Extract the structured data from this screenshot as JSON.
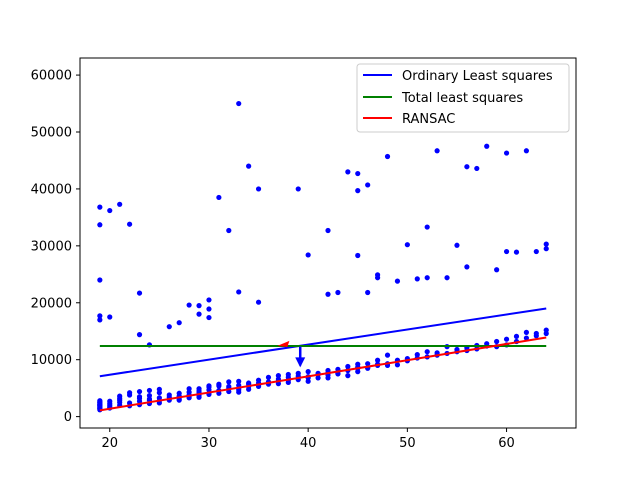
{
  "chart_data": {
    "type": "scatter",
    "title": "",
    "xlabel": "",
    "ylabel": "",
    "xlim": [
      17,
      67
    ],
    "ylim": [
      -2000,
      63000
    ],
    "x_ticks": [
      20,
      30,
      40,
      50,
      60
    ],
    "y_ticks": [
      0,
      10000,
      20000,
      30000,
      40000,
      50000,
      60000
    ],
    "grid": false,
    "legend_position": "top-right",
    "colors": {
      "points": "#0000ff",
      "ols": "#0000ff",
      "tls": "#008000",
      "ransac": "#ff0000"
    },
    "points_x": [
      19,
      19,
      19,
      19,
      19,
      19,
      19,
      19,
      19,
      19,
      19,
      19,
      19,
      20,
      20,
      20,
      20,
      20,
      21,
      21,
      21,
      21,
      21,
      22,
      22,
      22,
      22,
      23,
      23,
      23,
      23,
      23,
      24,
      24,
      24,
      24,
      24,
      25,
      25,
      25,
      25,
      25,
      26,
      26,
      26,
      27,
      27,
      27,
      27,
      27,
      28,
      28,
      28,
      28,
      28,
      29,
      29,
      29,
      29,
      29,
      30,
      30,
      30,
      30,
      30,
      31,
      31,
      31,
      31,
      32,
      32,
      32,
      32,
      33,
      33,
      33,
      33,
      33,
      34,
      34,
      34,
      34,
      35,
      35,
      35,
      35,
      36,
      36,
      36,
      37,
      37,
      37,
      37,
      38,
      38,
      38,
      38,
      39,
      39,
      39,
      40,
      40,
      40,
      40,
      41,
      41,
      41,
      42,
      42,
      42,
      42,
      43,
      43,
      43,
      44,
      44,
      44,
      45,
      45,
      45,
      45,
      46,
      46,
      46,
      47,
      47,
      47,
      48,
      48,
      48,
      49,
      49,
      50,
      50,
      51,
      51,
      52,
      52,
      53,
      53,
      54,
      54,
      55,
      55,
      56,
      56,
      57,
      57,
      58,
      58,
      59,
      59,
      60,
      60,
      61,
      61,
      62,
      62,
      63,
      63,
      64,
      64,
      19,
      19,
      19,
      19,
      19,
      20,
      20,
      21,
      22,
      23,
      23,
      24,
      26,
      27,
      28,
      29,
      29,
      30,
      30,
      30,
      31,
      32,
      33,
      33,
      34,
      35,
      35,
      39,
      40,
      42,
      42,
      43,
      44,
      45,
      45,
      45,
      46,
      46,
      47,
      47,
      48,
      49,
      50,
      51,
      52,
      52,
      53,
      54,
      55,
      56,
      56,
      57,
      58,
      59,
      60,
      60,
      61,
      62,
      63,
      64,
      64
    ],
    "points_y": [
      1500,
      2000,
      2500,
      1200,
      2800,
      1800,
      2200,
      1600,
      2400,
      1400,
      2600,
      1900,
      2100,
      1700,
      2300,
      2700,
      1500,
      2000,
      2500,
      3200,
      2000,
      3600,
      2900,
      4200,
      2400,
      1900,
      3800,
      2700,
      3200,
      2100,
      4400,
      3500,
      2300,
      3100,
      3700,
      4600,
      2900,
      3300,
      2400,
      4200,
      4800,
      2800,
      3400,
      2900,
      3800,
      3100,
      4100,
      3600,
      2900,
      3400,
      3300,
      3800,
      4300,
      4900,
      3600,
      4200,
      3700,
      3400,
      4900,
      4500,
      4100,
      4700,
      3900,
      5200,
      5400,
      4600,
      5400,
      4100,
      5700,
      5000,
      6100,
      4400,
      5300,
      5000,
      6200,
      4700,
      5500,
      4300,
      5300,
      5900,
      4800,
      5700,
      5500,
      5900,
      5300,
      6400,
      6100,
      6900,
      5700,
      6300,
      6600,
      5800,
      7200,
      6400,
      6900,
      7400,
      6000,
      7100,
      6500,
      7600,
      7000,
      7900,
      6800,
      6200,
      7400,
      7600,
      6800,
      8100,
      7700,
      6800,
      7300,
      8300,
      7500,
      7600,
      8800,
      8100,
      7200,
      8500,
      7900,
      9200,
      8700,
      8600,
      9300,
      8500,
      9000,
      9900,
      9200,
      9300,
      10800,
      9000,
      9900,
      9100,
      9800,
      10200,
      10900,
      10300,
      11400,
      10500,
      10800,
      11200,
      11100,
      12300,
      11400,
      11800,
      12100,
      11600,
      12500,
      11900,
      12400,
      12800,
      12300,
      13200,
      12600,
      13600,
      13200,
      14100,
      13800,
      14800,
      14200,
      14600,
      14600,
      15200,
      36800,
      33700,
      24000,
      17700,
      17000,
      36200,
      17500,
      37300,
      33800,
      21700,
      14400,
      12600,
      15800,
      16500,
      19600,
      19500,
      18000,
      20500,
      17400,
      18900,
      38500,
      32700,
      55000,
      21900,
      44000,
      40000,
      20100,
      40000,
      28400,
      32700,
      21500,
      21800,
      43000,
      42700,
      39700,
      28300,
      40700,
      21800,
      24900,
      24400,
      45700,
      23800,
      30200,
      24200,
      33300,
      24400,
      46700,
      24400,
      30100,
      43900,
      26300,
      43600,
      47500,
      25800,
      46300,
      29000,
      28900,
      46700,
      29000,
      29500,
      30300
    ],
    "ols": {
      "x": [
        19,
        64
      ],
      "y": [
        7100,
        19000
      ]
    },
    "tls": {
      "x": [
        19,
        64
      ],
      "y": [
        12400,
        12400
      ]
    },
    "ransac": {
      "x": [
        19,
        64
      ],
      "y": [
        1100,
        13900
      ]
    },
    "legend": [
      {
        "label": "Ordinary Least squares",
        "color": "#0000ff"
      },
      {
        "label": "Total least squares",
        "color": "#008000"
      },
      {
        "label": "RANSAC",
        "color": "#ff0000"
      }
    ]
  }
}
